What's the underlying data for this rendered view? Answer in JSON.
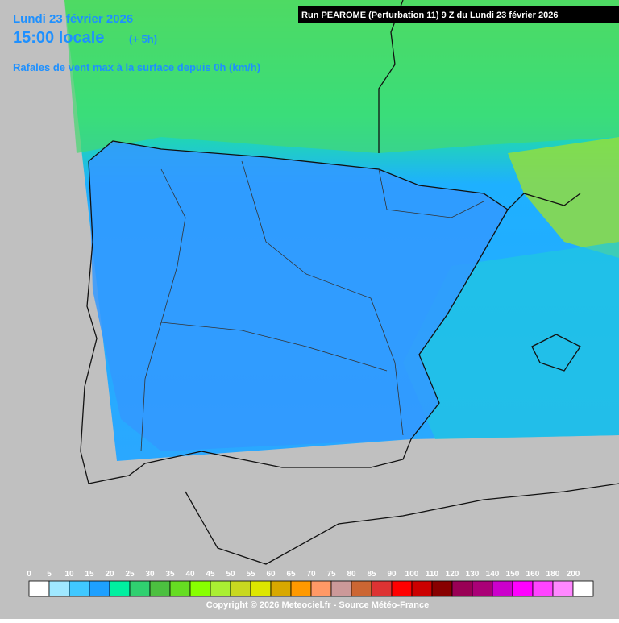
{
  "header": {
    "date": "Lundi 23 février 2026",
    "time": "15:00 locale",
    "offset": "(+ 5h)",
    "subtitle": "Rafales de vent max à la surface depuis 0h (km/h)"
  },
  "run": "Run PEAROME (Perturbation 11) 9 Z du Lundi 23 février 2026",
  "legend": {
    "items": [
      {
        "label": "0",
        "color": "#ffffff"
      },
      {
        "label": "5",
        "color": "#a0e8ff"
      },
      {
        "label": "10",
        "color": "#40c8ff"
      },
      {
        "label": "15",
        "color": "#1ea0ff"
      },
      {
        "label": "20",
        "color": "#00f0a0"
      },
      {
        "label": "25",
        "color": "#30d070"
      },
      {
        "label": "30",
        "color": "#4cc040"
      },
      {
        "label": "35",
        "color": "#66dd22"
      },
      {
        "label": "40",
        "color": "#88ff00"
      },
      {
        "label": "45",
        "color": "#aaee33"
      },
      {
        "label": "50",
        "color": "#c8d820"
      },
      {
        "label": "55",
        "color": "#dde600"
      },
      {
        "label": "60",
        "color": "#d8a800"
      },
      {
        "label": "65",
        "color": "#ff9900"
      },
      {
        "label": "70",
        "color": "#ff9966"
      },
      {
        "label": "75",
        "color": "#cc9999"
      },
      {
        "label": "80",
        "color": "#cc6633"
      },
      {
        "label": "85",
        "color": "#dd3333"
      },
      {
        "label": "90",
        "color": "#ff0000"
      },
      {
        "label": "100",
        "color": "#cc0000"
      },
      {
        "label": "110",
        "color": "#880000"
      },
      {
        "label": "120",
        "color": "#990055"
      },
      {
        "label": "130",
        "color": "#aa0077"
      },
      {
        "label": "140",
        "color": "#cc00cc"
      },
      {
        "label": "150",
        "color": "#ff00ff"
      },
      {
        "label": "160",
        "color": "#ff44ff"
      },
      {
        "label": "180",
        "color": "#ff88ff"
      },
      {
        "label": "200",
        "color": "#ffffff"
      }
    ]
  },
  "footer": "Copyright © 2026 Meteociel.fr - Source Météo-France"
}
